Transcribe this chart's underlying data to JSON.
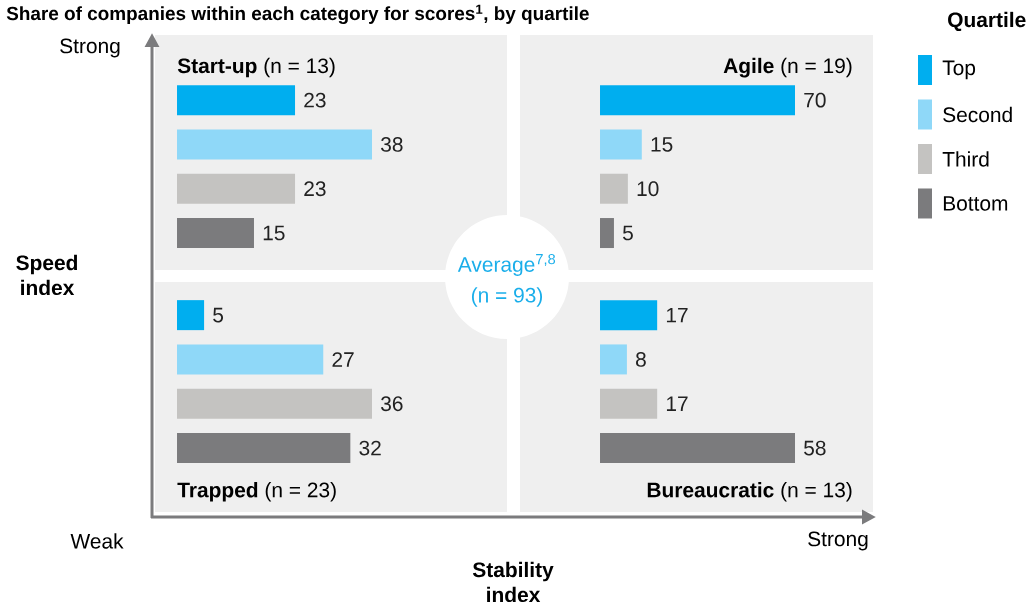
{
  "chart_data": [
    {
      "type": "other",
      "title": "Share of companies within each category for scores$^{1}$, by quartile",
      "xlabel": "Stability index",
      "ylabel": "Speed index",
      "annotations": [
        "Strong",
        "Weak",
        "Strong",
        "Average$^{7,8}$",
        "(n = 93)"
      ]
    },
    {
      "type": "bar",
      "orientation": "horizontal",
      "title": "**Start-up** (n = 13)",
      "categories": [
        null,
        null,
        null,
        null
      ],
      "data_labels": true,
      "values": [
        23,
        38,
        23,
        15
      ],
      "colors": [
        "#00aeef",
        "#8fd8f8",
        "#c4c3c1",
        "#7b7b7d"
      ]
    },
    {
      "type": "bar",
      "orientation": "horizontal",
      "title": "**Agile** (n = 19)",
      "categories": [
        null,
        null,
        null,
        null
      ],
      "data_labels": true,
      "values": [
        70,
        15,
        10,
        5
      ],
      "colors": [
        "#00aeef",
        "#8fd8f8",
        "#c4c3c1",
        "#7b7b7d"
      ]
    },
    {
      "type": "bar",
      "orientation": "horizontal",
      "title": "**Trapped** (n = 23)",
      "categories": [
        null,
        null,
        null,
        null
      ],
      "data_labels": true,
      "values": [
        5,
        27,
        36,
        32
      ],
      "colors": [
        "#00aeef",
        "#8fd8f8",
        "#c4c3c1",
        "#7b7b7d"
      ]
    },
    {
      "type": "bar",
      "orientation": "horizontal",
      "title": "**Bureaucratic** (n = 13)",
      "categories": [
        null,
        null,
        null,
        null
      ],
      "data_labels": true,
      "values": [
        17,
        8,
        17,
        58
      ],
      "colors": [
        "#00aeef",
        "#8fd8f8",
        "#c4c3c1",
        "#7b7b7d"
      ]
    },
    {
      "type": "other",
      "title": "Quartile",
      "annotations": [
        "Top",
        "Second",
        "Third",
        "Bottom"
      ],
      "colors": [
        "#00aeef",
        "#8fd8f8",
        "#c4c3c1",
        "#7b7b7d"
      ]
    }
  ]
}
